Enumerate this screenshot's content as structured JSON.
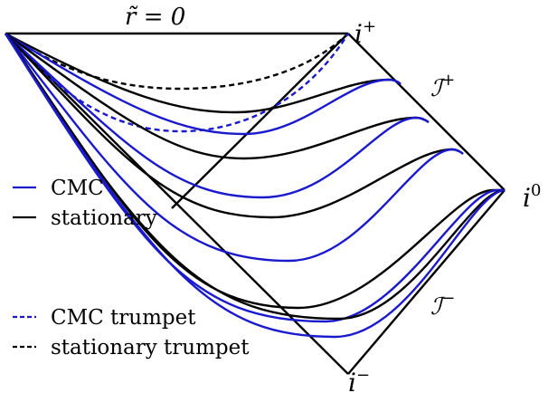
{
  "labels": {
    "r_tilde": "r̃ = 0",
    "i_plus": "i",
    "i_plus_sup": "+",
    "i_minus": "i",
    "i_minus_sup": "−",
    "i_zero": "i",
    "i_zero_sup": "0",
    "scri_plus": "ℐ",
    "scri_plus_sup": "+",
    "scri_minus": "ℐ",
    "scri_minus_sup": "−"
  },
  "legend": {
    "cmc": "CMC",
    "stationary": "stationary",
    "cmc_trumpet": "CMC trumpet",
    "stationary_trumpet": "stationary trumpet"
  },
  "colors": {
    "cmc": "#1a1acc",
    "stationary": "#000000",
    "outline": "#000000"
  }
}
